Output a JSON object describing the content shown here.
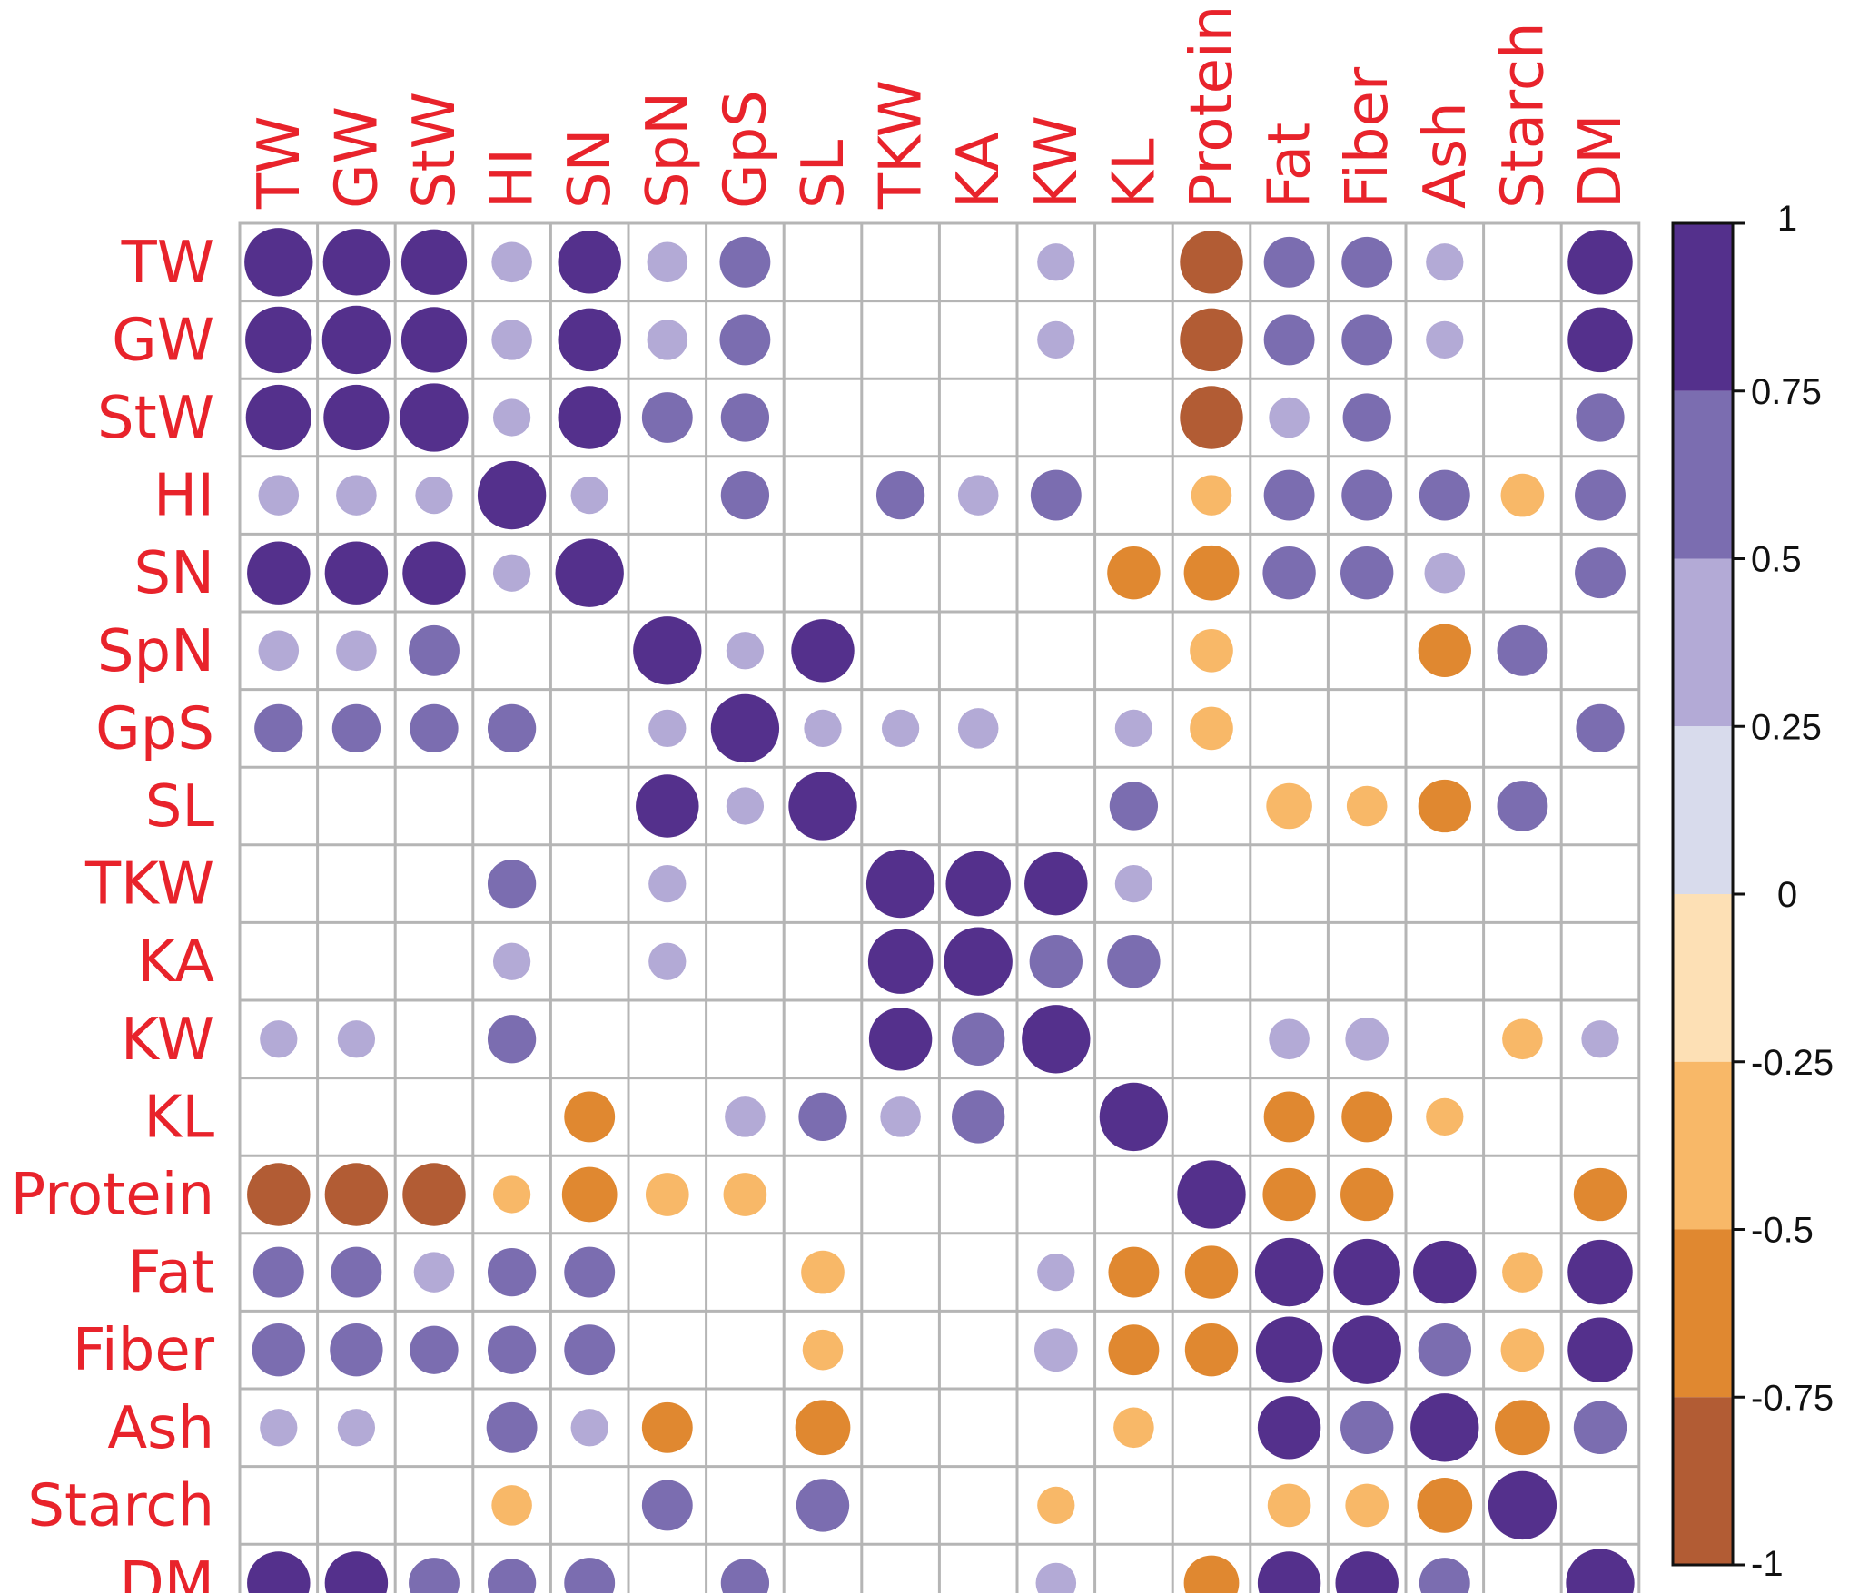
{
  "chart_data": {
    "type": "heatmap",
    "subtype": "correlation-circle-matrix",
    "variables": [
      "TW",
      "GW",
      "StW",
      "HI",
      "SN",
      "SpN",
      "GpS",
      "SL",
      "TKW",
      "KA",
      "KW",
      "KL",
      "Protein",
      "Fat",
      "Fiber",
      "Ash",
      "Starch",
      "DM"
    ],
    "matrix": [
      [
        1.0,
        0.95,
        0.92,
        0.35,
        0.85,
        0.35,
        0.55,
        null,
        null,
        null,
        0.3,
        null,
        -0.85,
        0.55,
        0.55,
        0.3,
        null,
        0.9
      ],
      [
        0.95,
        1.0,
        0.92,
        0.35,
        0.85,
        0.35,
        0.55,
        null,
        null,
        null,
        0.3,
        null,
        -0.85,
        0.55,
        0.55,
        0.3,
        null,
        0.9
      ],
      [
        0.92,
        0.92,
        1.0,
        0.3,
        0.85,
        0.55,
        0.5,
        null,
        null,
        null,
        null,
        null,
        -0.85,
        0.35,
        0.5,
        null,
        null,
        0.5
      ],
      [
        0.35,
        0.35,
        0.3,
        1.0,
        0.3,
        null,
        0.5,
        null,
        0.5,
        0.35,
        0.55,
        null,
        -0.35,
        0.55,
        0.55,
        0.55,
        -0.4,
        0.55
      ],
      [
        0.85,
        0.85,
        0.85,
        0.3,
        1.0,
        null,
        null,
        null,
        null,
        null,
        null,
        -0.6,
        -0.65,
        0.6,
        0.6,
        0.35,
        null,
        0.55
      ],
      [
        0.35,
        0.35,
        0.55,
        null,
        null,
        1.0,
        0.3,
        0.85,
        null,
        null,
        null,
        null,
        -0.4,
        null,
        null,
        -0.6,
        0.55,
        null
      ],
      [
        0.5,
        0.5,
        0.5,
        0.5,
        null,
        0.3,
        1.0,
        0.3,
        0.3,
        0.35,
        null,
        0.3,
        -0.4,
        null,
        null,
        null,
        null,
        0.5
      ],
      [
        null,
        null,
        null,
        null,
        null,
        0.85,
        0.3,
        1.0,
        null,
        null,
        null,
        0.5,
        null,
        -0.45,
        -0.35,
        -0.6,
        0.55,
        null
      ],
      [
        null,
        null,
        null,
        0.5,
        null,
        0.3,
        null,
        null,
        1.0,
        0.9,
        0.85,
        0.3,
        null,
        null,
        null,
        null,
        null,
        null
      ],
      [
        null,
        null,
        null,
        0.3,
        null,
        0.3,
        null,
        null,
        0.9,
        1.0,
        0.6,
        0.6,
        null,
        null,
        null,
        null,
        null,
        null
      ],
      [
        0.3,
        0.3,
        null,
        0.5,
        null,
        null,
        null,
        null,
        0.85,
        0.6,
        1.0,
        null,
        null,
        0.35,
        0.4,
        null,
        -0.35,
        0.3
      ],
      [
        null,
        null,
        null,
        null,
        -0.55,
        null,
        0.35,
        0.5,
        0.35,
        0.6,
        null,
        1.0,
        null,
        -0.55,
        -0.55,
        -0.3,
        null,
        null
      ],
      [
        -0.85,
        -0.85,
        -0.85,
        -0.3,
        -0.65,
        -0.4,
        -0.4,
        null,
        null,
        null,
        null,
        null,
        1.0,
        -0.6,
        -0.6,
        null,
        null,
        -0.6
      ],
      [
        0.55,
        0.55,
        0.35,
        0.5,
        0.55,
        null,
        null,
        -0.4,
        null,
        null,
        0.3,
        -0.55,
        -0.6,
        1.0,
        0.95,
        0.85,
        -0.35,
        0.9
      ],
      [
        0.6,
        0.6,
        0.5,
        0.5,
        0.55,
        null,
        null,
        -0.35,
        null,
        null,
        0.4,
        -0.55,
        -0.6,
        0.95,
        1.0,
        0.6,
        -0.4,
        0.9
      ],
      [
        0.3,
        0.3,
        null,
        0.55,
        0.3,
        -0.55,
        null,
        -0.65,
        null,
        null,
        null,
        -0.35,
        null,
        0.85,
        0.6,
        1.0,
        -0.65,
        0.6
      ],
      [
        null,
        null,
        null,
        -0.35,
        null,
        0.55,
        null,
        0.6,
        null,
        null,
        -0.3,
        null,
        null,
        -0.4,
        -0.4,
        -0.65,
        1.0,
        null
      ],
      [
        0.85,
        0.85,
        0.55,
        0.5,
        0.55,
        null,
        0.5,
        null,
        null,
        null,
        0.35,
        null,
        -0.65,
        0.85,
        0.85,
        0.55,
        null,
        1.0
      ]
    ],
    "colorbar": {
      "ticks": [
        "1",
        "0.75",
        "0.5",
        "0.25",
        "0",
        "-0.25",
        "-0.5",
        "-0.75",
        "-1"
      ],
      "bins": [
        {
          "from": 0.75,
          "to": 1.0,
          "color": "#54308c"
        },
        {
          "from": 0.5,
          "to": 0.75,
          "color": "#7b6db0"
        },
        {
          "from": 0.25,
          "to": 0.5,
          "color": "#b3aad6"
        },
        {
          "from": 0.0,
          "to": 0.25,
          "color": "#d8dbec"
        },
        {
          "from": -0.25,
          "to": 0.0,
          "color": "#fde0b5"
        },
        {
          "from": -0.5,
          "to": -0.25,
          "color": "#f8b868"
        },
        {
          "from": -0.75,
          "to": -0.5,
          "color": "#e08830"
        },
        {
          "from": -1.0,
          "to": -0.75,
          "color": "#b25c34"
        }
      ],
      "range": [
        -1,
        1
      ]
    },
    "label_color": "#e8232b",
    "grid_color": "#b5b5b5"
  }
}
